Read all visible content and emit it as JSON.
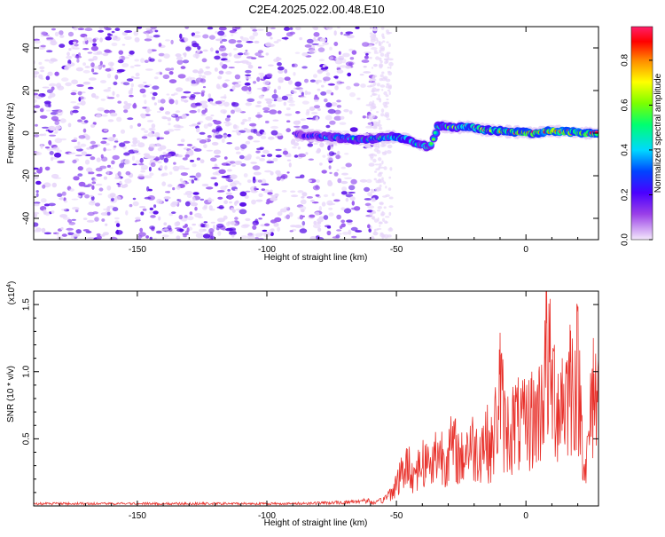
{
  "title": "C2E4.2025.022.00.48.E10",
  "chart_data": [
    {
      "type": "heatmap",
      "xlabel": "Height of straight line (km)",
      "ylabel": "Frequency (Hz)",
      "xlim": [
        -190,
        28
      ],
      "ylim": [
        -50,
        50
      ],
      "xticks": [
        -150,
        -100,
        -50,
        0
      ],
      "yticks": [
        -40,
        -20,
        0,
        20,
        40
      ],
      "colorbar": {
        "label": "Normalized spectral amplitude",
        "range": [
          0.0,
          0.95
        ],
        "ticks": [
          "0.0",
          "0.2",
          "0.4",
          "0.6",
          "0.8"
        ],
        "tick_values": [
          0.0,
          0.2,
          0.4,
          0.6,
          0.8
        ],
        "colors": [
          "#f4e8fb",
          "#9a40e8",
          "#4a00ff",
          "#0044ff",
          "#00d8ff",
          "#00ff70",
          "#7cff00",
          "#ffff00",
          "#ff8c00",
          "#ff0000",
          "#ff1f6a"
        ]
      },
      "signal_band": [
        {
          "x": -88,
          "f": -0.8,
          "a": 0.25
        },
        {
          "x": -82,
          "f": -1.2,
          "a": 0.3
        },
        {
          "x": -76,
          "f": -1.8,
          "a": 0.4
        },
        {
          "x": -70,
          "f": -2.5,
          "a": 0.45
        },
        {
          "x": -64,
          "f": -3.0,
          "a": 0.5
        },
        {
          "x": -58,
          "f": -2.6,
          "a": 0.45
        },
        {
          "x": -52,
          "f": -1.6,
          "a": 0.55
        },
        {
          "x": -46,
          "f": -2.8,
          "a": 0.6
        },
        {
          "x": -42,
          "f": -5.0,
          "a": 0.55
        },
        {
          "x": -37,
          "f": -6.5,
          "a": 0.5
        },
        {
          "x": -34,
          "f": 3.5,
          "a": 0.55
        },
        {
          "x": -28,
          "f": 2.5,
          "a": 0.6
        },
        {
          "x": -22,
          "f": 3.0,
          "a": 0.7
        },
        {
          "x": -16,
          "f": 1.5,
          "a": 0.7
        },
        {
          "x": -10,
          "f": 1.0,
          "a": 0.8
        },
        {
          "x": -4,
          "f": 0.5,
          "a": 0.85
        },
        {
          "x": 3,
          "f": 0.0,
          "a": 0.85
        },
        {
          "x": 10,
          "f": 1.0,
          "a": 0.9
        },
        {
          "x": 17,
          "f": 0.5,
          "a": 0.9
        },
        {
          "x": 24,
          "f": 0.0,
          "a": 0.85
        }
      ]
    },
    {
      "type": "line",
      "xlabel": "Height of straight line (km)",
      "ylabel": "SNR (10 * v/v)",
      "y_multiplier": "(x10",
      "y_multiplier_exp": "4",
      "y_multiplier_close": ")",
      "xlim": [
        -190,
        28
      ],
      "ylim": [
        0,
        1.6
      ],
      "xticks": [
        -150,
        -100,
        -50,
        0
      ],
      "yticks": [
        0.5,
        1.0,
        1.5
      ],
      "ytick_labels": [
        "0.5",
        "1.0",
        "1.5"
      ],
      "color": "#e8302a",
      "series": [
        {
          "x": [
            -190,
            -170,
            -150,
            -130,
            -110,
            -90,
            -70,
            -62,
            -58,
            -55,
            -52,
            -49,
            -46,
            -43,
            -40,
            -37,
            -34,
            -31,
            -28,
            -25,
            -22,
            -19,
            -16,
            -13,
            -10,
            -8,
            -4,
            -1,
            2,
            5,
            8,
            11,
            14,
            17,
            20,
            23,
            26,
            28
          ],
          "values": [
            0.02,
            0.02,
            0.02,
            0.02,
            0.02,
            0.02,
            0.03,
            0.05,
            0.03,
            0.07,
            0.15,
            0.3,
            0.45,
            0.35,
            0.5,
            0.45,
            0.6,
            0.55,
            0.65,
            0.5,
            0.7,
            0.6,
            0.75,
            0.6,
            1.29,
            0.8,
            0.9,
            0.85,
            0.95,
            1.0,
            1.6,
            1.2,
            1.1,
            1.35,
            1.45,
            0.35,
            1.25,
            1.1
          ]
        }
      ]
    }
  ]
}
